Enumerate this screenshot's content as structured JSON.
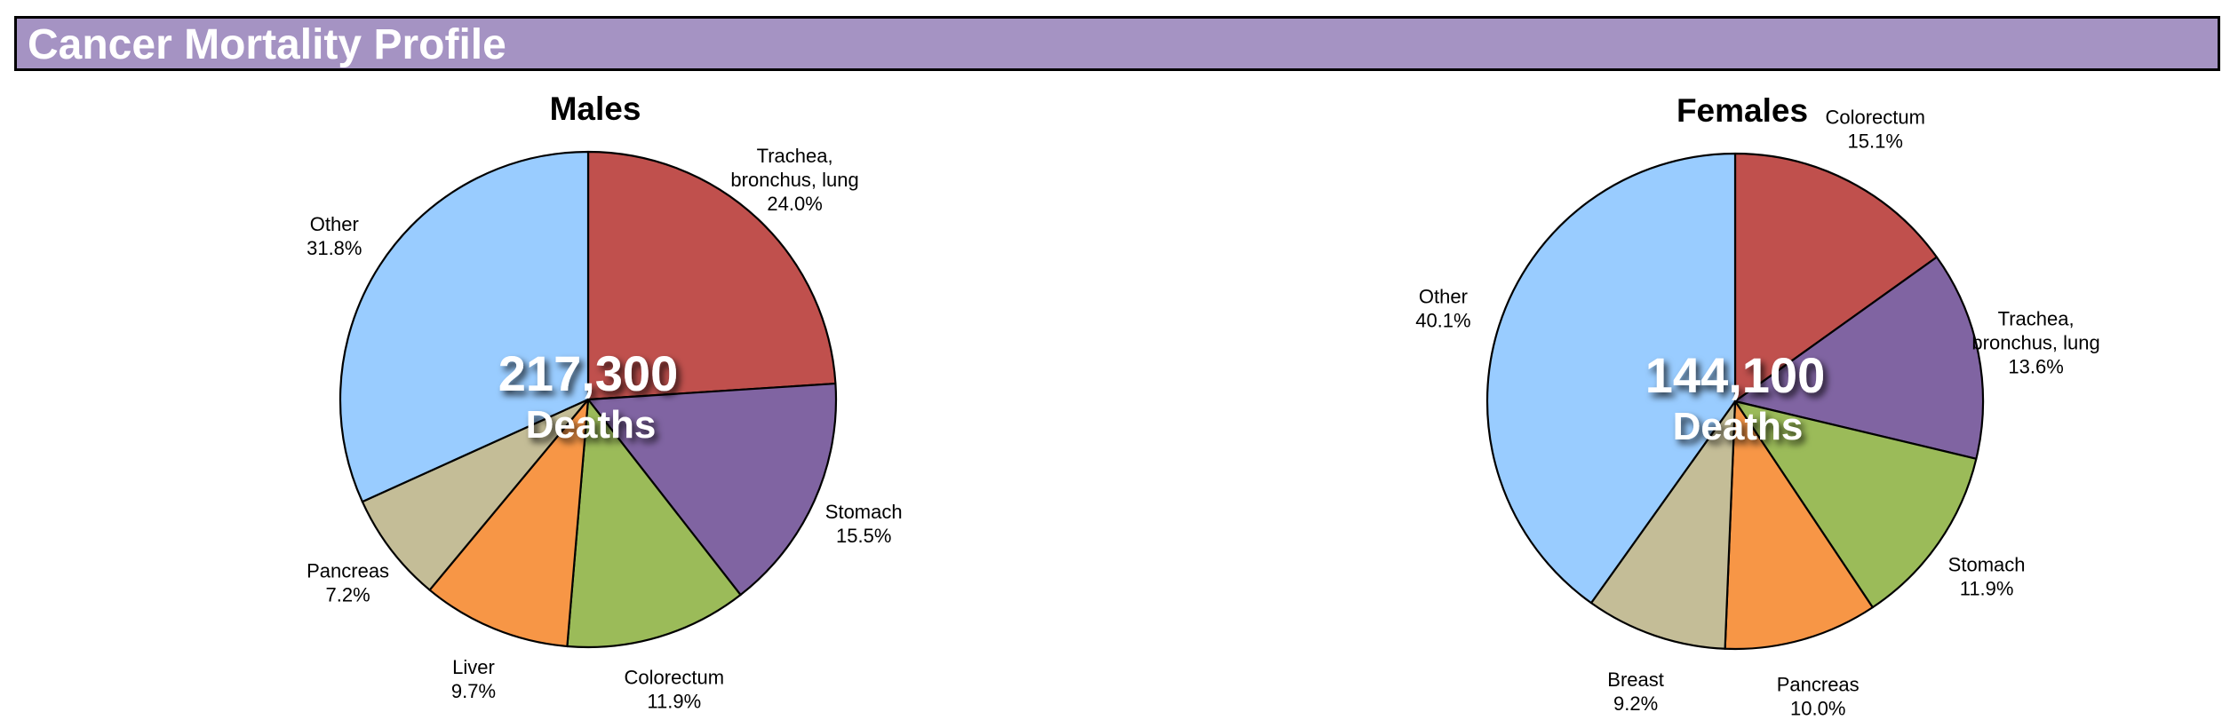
{
  "header": {
    "title": "Cancer Mortality Profile"
  },
  "chart_data": [
    {
      "type": "pie",
      "title": "Males",
      "total_value": "217,300",
      "total_label": "Deaths",
      "slices": [
        {
          "label": [
            "Trachea,",
            "bronchus, lung"
          ],
          "name": "Trachea, bronchus, lung",
          "value": 24.0,
          "pct": "24.0%",
          "color": "#c0504d"
        },
        {
          "label": [
            "Stomach"
          ],
          "name": "Stomach",
          "value": 15.5,
          "pct": "15.5%",
          "color": "#8064a2"
        },
        {
          "label": [
            "Colorectum"
          ],
          "name": "Colorectum",
          "value": 11.9,
          "pct": "11.9%",
          "color": "#9bbb59"
        },
        {
          "label": [
            "Liver"
          ],
          "name": "Liver",
          "value": 9.7,
          "pct": "9.7%",
          "color": "#f79646"
        },
        {
          "label": [
            "Pancreas"
          ],
          "name": "Pancreas",
          "value": 7.2,
          "pct": "7.2%",
          "color": "#c4bd97"
        },
        {
          "label": [
            "Other"
          ],
          "name": "Other",
          "value": 31.8,
          "pct": "31.8%",
          "color": "#99ccff"
        }
      ]
    },
    {
      "type": "pie",
      "title": "Females",
      "total_value": "144,100",
      "total_label": "Deaths",
      "slices": [
        {
          "label": [
            "Colorectum"
          ],
          "name": "Colorectum",
          "value": 15.1,
          "pct": "15.1%",
          "color": "#c0504d"
        },
        {
          "label": [
            "Trachea,",
            "bronchus, lung"
          ],
          "name": "Trachea, bronchus, lung",
          "value": 13.6,
          "pct": "13.6%",
          "color": "#8064a2"
        },
        {
          "label": [
            "Stomach"
          ],
          "name": "Stomach",
          "value": 11.9,
          "pct": "11.9%",
          "color": "#9bbb59"
        },
        {
          "label": [
            "Pancreas"
          ],
          "name": "Pancreas",
          "value": 10.0,
          "pct": "10.0%",
          "color": "#f79646"
        },
        {
          "label": [
            "Breast"
          ],
          "name": "Breast",
          "value": 9.2,
          "pct": "9.2%",
          "color": "#c4bd97"
        },
        {
          "label": [
            "Other"
          ],
          "name": "Other",
          "value": 40.1,
          "pct": "40.1%",
          "color": "#99ccff"
        }
      ]
    }
  ]
}
